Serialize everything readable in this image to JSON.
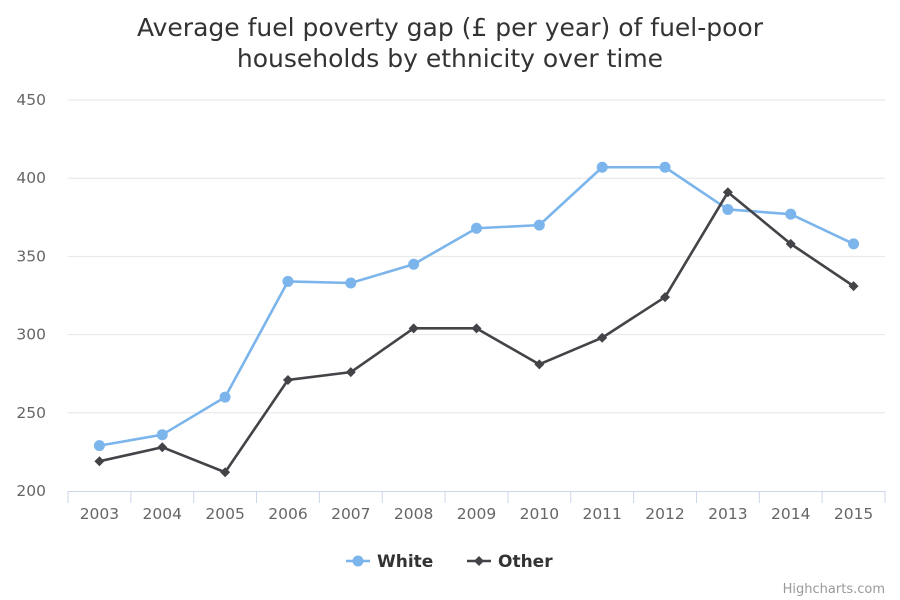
{
  "chart_data": {
    "type": "line",
    "title": "Average fuel poverty gap (£ per year) of fuel-poor households by ethnicity over time",
    "title_lines": [
      "Average fuel poverty gap (£ per year) of fuel-poor",
      "households by ethnicity over time"
    ],
    "categories": [
      "2003",
      "2004",
      "2005",
      "2006",
      "2007",
      "2008",
      "2009",
      "2010",
      "2011",
      "2012",
      "2013",
      "2014",
      "2015"
    ],
    "ylim": [
      200,
      450
    ],
    "yticks": [
      200,
      250,
      300,
      350,
      400,
      450
    ],
    "grid": true,
    "legend_position": "bottom-center",
    "series": [
      {
        "name": "White",
        "color": "#7cb5ec",
        "marker": "circle",
        "values": [
          229,
          236,
          260,
          334,
          333,
          345,
          368,
          370,
          407,
          407,
          380,
          377,
          358
        ]
      },
      {
        "name": "Other",
        "color": "#434348",
        "marker": "diamond",
        "values": [
          219,
          228,
          212,
          271,
          276,
          304,
          304,
          281,
          298,
          324,
          391,
          358,
          331
        ]
      }
    ],
    "credits": "Highcharts.com"
  }
}
